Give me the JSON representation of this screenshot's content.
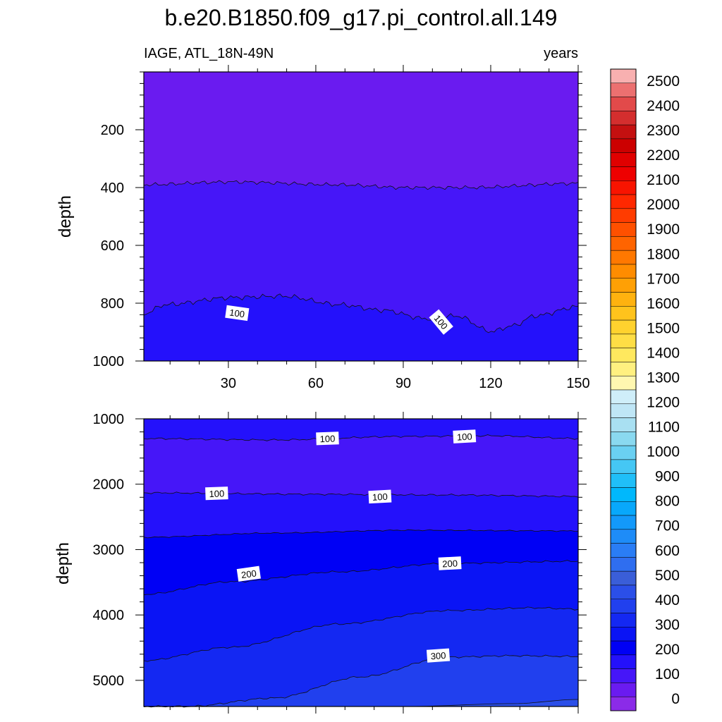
{
  "chart_data": {
    "type": "contour",
    "title": "b.e20.B1850.f09_g17.pi_control.all.149",
    "subtitle_left": "IAGE, ATL_18N-49N",
    "subtitle_right": "years",
    "xlabel": "",
    "ylabel_top": "depth",
    "ylabel_bottom": "depth",
    "x_range": [
      1,
      150
    ],
    "x_ticks": [
      30,
      60,
      90,
      120,
      150
    ],
    "panels": [
      {
        "name": "upper",
        "y_range": [
          0,
          1000
        ],
        "y_ticks": [
          200,
          400,
          600,
          800,
          1000
        ],
        "contour_fills": [
          {
            "level": "0-50",
            "color": "#6a1bf0"
          },
          {
            "level": "50-100",
            "color": "#4616f8"
          },
          {
            "level": "100-150",
            "color": "#2411fb"
          }
        ],
        "contour_labels": [
          {
            "text": "100",
            "x": 33,
            "y": 795
          },
          {
            "text": "100",
            "x": 103,
            "y": 865
          }
        ]
      },
      {
        "name": "lower",
        "y_range": [
          1000,
          5400
        ],
        "y_ticks": [
          1000,
          2000,
          3000,
          4000,
          5000
        ],
        "contour_fills": [
          {
            "level": "100-150",
            "color": "#2411fb"
          },
          {
            "level": "50-100",
            "color": "#4616f8"
          },
          {
            "level": "150-200",
            "color": "#0000f5"
          },
          {
            "level": "200-250",
            "color": "#0a14f5"
          },
          {
            "level": "250-300",
            "color": "#1428f2"
          },
          {
            "level": "300-350",
            "color": "#2140ee"
          },
          {
            "level": "350-400",
            "color": "#2b4fe8"
          }
        ],
        "contour_labels": [
          {
            "text": "100",
            "x": 64,
            "y": 1300
          },
          {
            "text": "100",
            "x": 111,
            "y": 1270
          },
          {
            "text": "100",
            "x": 26,
            "y": 2140
          },
          {
            "text": "100",
            "x": 82,
            "y": 2190
          },
          {
            "text": "200",
            "x": 37,
            "y": 3370
          },
          {
            "text": "200",
            "x": 106,
            "y": 3210
          },
          {
            "text": "300",
            "x": 102,
            "y": 4620
          }
        ]
      }
    ],
    "colorbar": {
      "labels": [
        "0",
        "100",
        "200",
        "300",
        "400",
        "500",
        "600",
        "700",
        "800",
        "900",
        "1000",
        "1100",
        "1200",
        "1300",
        "1400",
        "1500",
        "1600",
        "1700",
        "1800",
        "1900",
        "2000",
        "2100",
        "2200",
        "2300",
        "2400",
        "2500"
      ],
      "colors": [
        "#8b2be8",
        "#6a1bf0",
        "#4616f8",
        "#2411fb",
        "#0000f5",
        "#0a14f5",
        "#1428f2",
        "#2140ee",
        "#2b4fe8",
        "#3a5ed8",
        "#2f6ef0",
        "#2a7df5",
        "#1e8cf8",
        "#1399fa",
        "#08a8fb",
        "#00b8fc",
        "#20bff8",
        "#45c7f4",
        "#6ad0f2",
        "#8ad9f0",
        "#a9e0f2",
        "#bfe6f6",
        "#cfeef9",
        "#fff7b0",
        "#fff080",
        "#ffe85e",
        "#ffde45",
        "#ffd22e",
        "#ffc31c",
        "#ffb20f",
        "#ffa005",
        "#ff8c00",
        "#ff7800",
        "#ff6400",
        "#ff5000",
        "#ff3c00",
        "#ff2800",
        "#f81400",
        "#ee0000",
        "#e00000",
        "#cc0000",
        "#c41010",
        "#d42e2e",
        "#e24a4a",
        "#ec7070",
        "#f8b0b0"
      ]
    }
  }
}
